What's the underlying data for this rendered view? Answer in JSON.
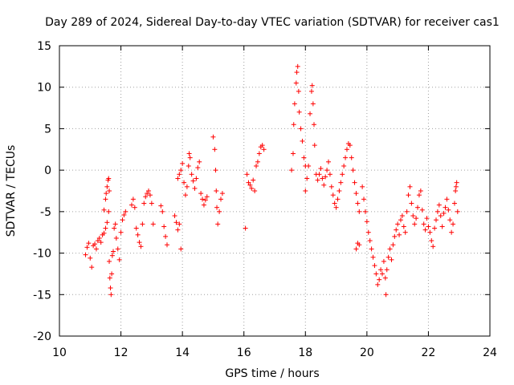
{
  "chart_data": {
    "type": "scatter",
    "title": "Day 289 of 2024, Sidereal Day-to-day VTEC variation (SDTVAR) for receiver cas1",
    "xlabel": "GPS time / hours",
    "ylabel": "SDTVAR / TECUs",
    "xlim": [
      10,
      24
    ],
    "ylim": [
      -20,
      15
    ],
    "xticks": [
      10,
      12,
      14,
      16,
      18,
      20,
      22,
      24
    ],
    "yticks": [
      -20,
      -15,
      -10,
      -5,
      0,
      5,
      10,
      15
    ],
    "grid": true,
    "marker": "+",
    "colors": {
      "series": "#ff0000",
      "grid": "#a0a0a0",
      "axis": "#000000"
    },
    "series": [
      {
        "name": "SDTVAR",
        "points": [
          [
            10.85,
            -10.2
          ],
          [
            10.9,
            -9.3
          ],
          [
            10.95,
            -8.8
          ],
          [
            11.0,
            -10.6
          ],
          [
            11.05,
            -11.7
          ],
          [
            11.1,
            -9.1
          ],
          [
            11.15,
            -8.9
          ],
          [
            11.2,
            -9.5
          ],
          [
            11.25,
            -8.5
          ],
          [
            11.3,
            -8.2
          ],
          [
            11.35,
            -8.7
          ],
          [
            11.4,
            -7.8
          ],
          [
            11.45,
            -7.6
          ],
          [
            11.5,
            -7.0
          ],
          [
            11.55,
            -6.3
          ],
          [
            11.45,
            -4.8
          ],
          [
            11.5,
            -3.5
          ],
          [
            11.52,
            -2.8
          ],
          [
            11.55,
            -2.0
          ],
          [
            11.58,
            -1.2
          ],
          [
            11.6,
            -1.0
          ],
          [
            11.62,
            -2.5
          ],
          [
            11.6,
            -5.0
          ],
          [
            11.62,
            -11.0
          ],
          [
            11.64,
            -13.0
          ],
          [
            11.66,
            -14.2
          ],
          [
            11.68,
            -15.0
          ],
          [
            11.7,
            -12.5
          ],
          [
            11.72,
            -10.3
          ],
          [
            11.75,
            -9.8
          ],
          [
            11.78,
            -7.0
          ],
          [
            11.82,
            -6.5
          ],
          [
            11.85,
            -8.2
          ],
          [
            11.9,
            -9.5
          ],
          [
            11.95,
            -10.8
          ],
          [
            12.0,
            -7.5
          ],
          [
            12.05,
            -6.0
          ],
          [
            12.1,
            -5.4
          ],
          [
            12.15,
            -5.0
          ],
          [
            12.35,
            -4.2
          ],
          [
            12.4,
            -3.5
          ],
          [
            12.45,
            -4.5
          ],
          [
            12.5,
            -7.0
          ],
          [
            12.55,
            -7.8
          ],
          [
            12.6,
            -8.7
          ],
          [
            12.65,
            -9.2
          ],
          [
            12.7,
            -6.5
          ],
          [
            12.75,
            -4.0
          ],
          [
            12.8,
            -3.2
          ],
          [
            12.85,
            -2.8
          ],
          [
            12.9,
            -2.5
          ],
          [
            12.95,
            -3.0
          ],
          [
            13.0,
            -4.0
          ],
          [
            13.05,
            -6.5
          ],
          [
            13.3,
            -4.3
          ],
          [
            13.35,
            -5.0
          ],
          [
            13.4,
            -6.8
          ],
          [
            13.45,
            -8.0
          ],
          [
            13.5,
            -9.0
          ],
          [
            13.75,
            -5.5
          ],
          [
            13.8,
            -6.3
          ],
          [
            13.85,
            -7.2
          ],
          [
            13.9,
            -6.5
          ],
          [
            13.95,
            -9.5
          ],
          [
            13.85,
            -1.0
          ],
          [
            13.9,
            -0.5
          ],
          [
            13.95,
            0.0
          ],
          [
            14.0,
            0.8
          ],
          [
            14.05,
            -1.5
          ],
          [
            14.1,
            -3.0
          ],
          [
            14.15,
            -2.0
          ],
          [
            14.2,
            0.5
          ],
          [
            14.22,
            2.0
          ],
          [
            14.25,
            1.5
          ],
          [
            14.3,
            -0.5
          ],
          [
            14.35,
            -1.3
          ],
          [
            14.4,
            -2.2
          ],
          [
            14.45,
            -1.0
          ],
          [
            14.5,
            0.3
          ],
          [
            14.55,
            1.0
          ],
          [
            14.6,
            -2.8
          ],
          [
            14.65,
            -3.5
          ],
          [
            14.7,
            -4.2
          ],
          [
            14.75,
            -3.6
          ],
          [
            14.8,
            -3.2
          ],
          [
            15.0,
            4.0
          ],
          [
            15.05,
            2.5
          ],
          [
            15.08,
            0.0
          ],
          [
            15.1,
            -2.5
          ],
          [
            15.12,
            -4.5
          ],
          [
            15.15,
            -6.5
          ],
          [
            15.2,
            -5.0
          ],
          [
            15.25,
            -3.5
          ],
          [
            15.3,
            -2.8
          ],
          [
            16.05,
            -7.0
          ],
          [
            16.1,
            -0.5
          ],
          [
            16.15,
            -1.5
          ],
          [
            16.2,
            -1.8
          ],
          [
            16.25,
            -2.2
          ],
          [
            16.3,
            -1.2
          ],
          [
            16.35,
            -2.5
          ],
          [
            16.4,
            0.5
          ],
          [
            16.45,
            1.0
          ],
          [
            16.5,
            2.0
          ],
          [
            16.55,
            2.8
          ],
          [
            16.6,
            3.0
          ],
          [
            16.65,
            2.5
          ],
          [
            17.55,
            0.0
          ],
          [
            17.6,
            2.0
          ],
          [
            17.62,
            5.5
          ],
          [
            17.65,
            8.0
          ],
          [
            17.7,
            10.5
          ],
          [
            17.72,
            11.8
          ],
          [
            17.75,
            12.5
          ],
          [
            17.78,
            9.5
          ],
          [
            17.8,
            7.0
          ],
          [
            17.85,
            5.0
          ],
          [
            17.9,
            3.5
          ],
          [
            17.95,
            1.5
          ],
          [
            18.0,
            0.5
          ],
          [
            18.0,
            -2.5
          ],
          [
            18.05,
            -1.0
          ],
          [
            18.1,
            0.5
          ],
          [
            18.15,
            6.8
          ],
          [
            18.2,
            9.5
          ],
          [
            18.22,
            10.2
          ],
          [
            18.25,
            8.0
          ],
          [
            18.28,
            5.5
          ],
          [
            18.3,
            3.0
          ],
          [
            18.35,
            -0.5
          ],
          [
            18.4,
            -1.2
          ],
          [
            18.45,
            -0.5
          ],
          [
            18.5,
            0.2
          ],
          [
            18.55,
            -1.0
          ],
          [
            18.6,
            -1.8
          ],
          [
            18.65,
            -0.8
          ],
          [
            18.7,
            0.0
          ],
          [
            18.75,
            1.0
          ],
          [
            18.8,
            -0.5
          ],
          [
            18.85,
            -2.0
          ],
          [
            18.9,
            -3.0
          ],
          [
            18.95,
            -4.0
          ],
          [
            19.0,
            -4.5
          ],
          [
            19.05,
            -3.5
          ],
          [
            19.1,
            -2.5
          ],
          [
            19.15,
            -1.5
          ],
          [
            19.2,
            -0.5
          ],
          [
            19.25,
            0.5
          ],
          [
            19.3,
            1.5
          ],
          [
            19.35,
            2.5
          ],
          [
            19.4,
            3.2
          ],
          [
            19.45,
            3.0
          ],
          [
            19.5,
            1.5
          ],
          [
            19.55,
            0.0
          ],
          [
            19.6,
            -1.5
          ],
          [
            19.65,
            -2.8
          ],
          [
            19.7,
            -4.0
          ],
          [
            19.75,
            -5.0
          ],
          [
            19.65,
            -9.5
          ],
          [
            19.7,
            -8.8
          ],
          [
            19.75,
            -9.0
          ],
          [
            19.85,
            -2.0
          ],
          [
            19.9,
            -3.5
          ],
          [
            19.95,
            -5.0
          ],
          [
            20.0,
            -6.2
          ],
          [
            20.05,
            -7.5
          ],
          [
            20.1,
            -8.5
          ],
          [
            20.15,
            -9.5
          ],
          [
            20.2,
            -10.5
          ],
          [
            20.25,
            -11.5
          ],
          [
            20.3,
            -12.5
          ],
          [
            20.35,
            -13.8
          ],
          [
            20.4,
            -13.2
          ],
          [
            20.45,
            -12.0
          ],
          [
            20.5,
            -12.5
          ],
          [
            20.55,
            -11.0
          ],
          [
            20.6,
            -13.0
          ],
          [
            20.62,
            -15.0
          ],
          [
            20.65,
            -12.0
          ],
          [
            20.7,
            -10.5
          ],
          [
            20.75,
            -9.5
          ],
          [
            20.8,
            -10.8
          ],
          [
            20.85,
            -9.0
          ],
          [
            20.9,
            -8.0
          ],
          [
            20.95,
            -7.2
          ],
          [
            21.0,
            -6.5
          ],
          [
            21.05,
            -7.8
          ],
          [
            21.1,
            -6.0
          ],
          [
            21.15,
            -5.5
          ],
          [
            21.2,
            -6.8
          ],
          [
            21.25,
            -7.5
          ],
          [
            21.3,
            -5.0
          ],
          [
            21.35,
            -3.0
          ],
          [
            21.4,
            -2.0
          ],
          [
            21.45,
            -4.0
          ],
          [
            21.5,
            -5.5
          ],
          [
            21.55,
            -6.5
          ],
          [
            21.6,
            -5.8
          ],
          [
            21.65,
            -4.5
          ],
          [
            21.7,
            -3.0
          ],
          [
            21.75,
            -2.5
          ],
          [
            21.8,
            -4.8
          ],
          [
            21.85,
            -6.5
          ],
          [
            21.9,
            -7.2
          ],
          [
            21.95,
            -5.8
          ],
          [
            22.0,
            -6.8
          ],
          [
            22.05,
            -7.5
          ],
          [
            22.1,
            -8.5
          ],
          [
            22.15,
            -9.2
          ],
          [
            22.2,
            -7.0
          ],
          [
            22.25,
            -6.0
          ],
          [
            22.3,
            -5.0
          ],
          [
            22.35,
            -4.2
          ],
          [
            22.4,
            -5.5
          ],
          [
            22.45,
            -6.8
          ],
          [
            22.5,
            -5.2
          ],
          [
            22.55,
            -4.5
          ],
          [
            22.6,
            -3.5
          ],
          [
            22.65,
            -4.8
          ],
          [
            22.7,
            -6.0
          ],
          [
            22.75,
            -7.5
          ],
          [
            22.8,
            -6.5
          ],
          [
            22.85,
            -4.0
          ],
          [
            22.88,
            -2.5
          ],
          [
            22.9,
            -2.0
          ],
          [
            22.92,
            -1.5
          ],
          [
            22.95,
            -5.0
          ]
        ]
      }
    ]
  }
}
